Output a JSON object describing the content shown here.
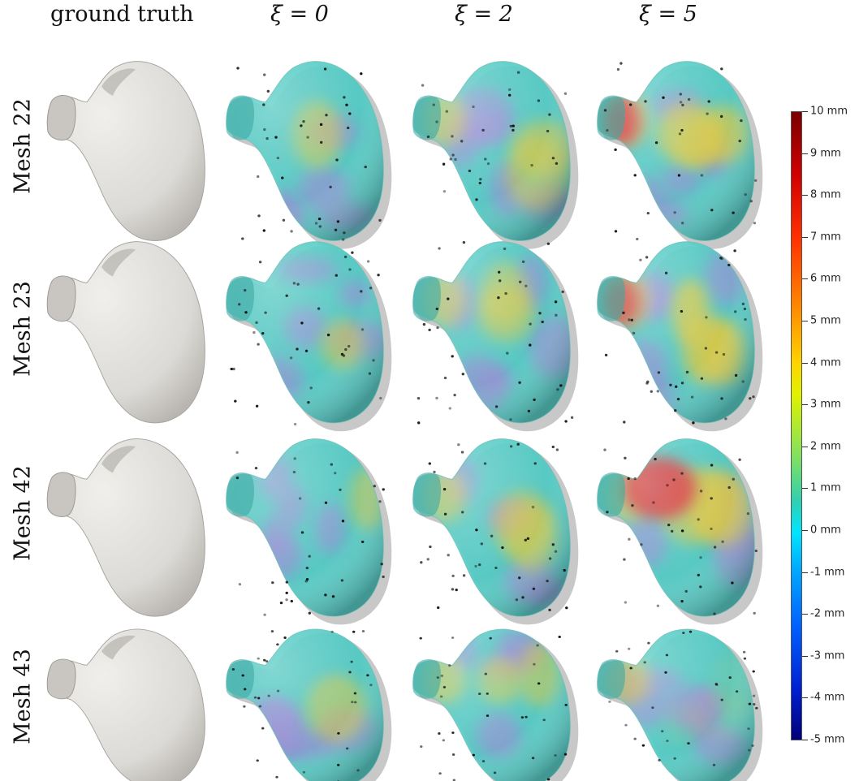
{
  "columns": [
    "ground truth",
    "ξ = 0",
    "ξ = 2",
    "ξ = 5"
  ],
  "rows": [
    "Mesh 22",
    "Mesh 23",
    "Mesh 42",
    "Mesh 43"
  ],
  "colorbar": {
    "labels": [
      "10 mm",
      "9 mm",
      "8 mm",
      "7 mm",
      "6 mm",
      "5 mm",
      "4 mm",
      "3 mm",
      "2 mm",
      "1 mm",
      "0 mm",
      "-1 mm",
      "-2 mm",
      "-3 mm",
      "-4 mm",
      "-5 mm"
    ],
    "colors": [
      "#7a0000",
      "#d00000",
      "#ff3000",
      "#ff8000",
      "#ffd400",
      "#80e060",
      "#30d0b0",
      "#00e5ff",
      "#00a8ff",
      "#0060ff",
      "#0020d0",
      "#00007a"
    ]
  },
  "surface_colors": {
    "ground_truth": "#dcdad6",
    "teal": "#4ec9c2",
    "purple": "#9a8fd4",
    "yellow": "#d8c84a",
    "red": "#d8383a",
    "gray_shadow": "#9a9a9a",
    "points": "#111111"
  }
}
